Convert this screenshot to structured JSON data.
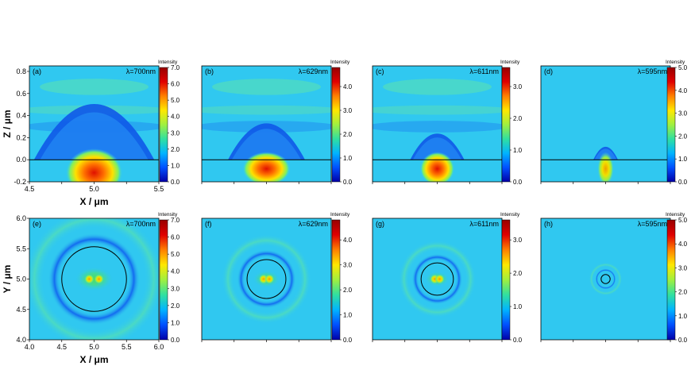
{
  "chart_data": [
    {
      "type": "heatmap",
      "label": "(a)",
      "wavelength": "λ=700nm",
      "view": "XZ",
      "xlim": [
        4.5,
        5.5
      ],
      "ylim": [
        -0.2,
        0.85
      ],
      "xticks": [
        "4.5",
        "5.0",
        "5.5"
      ],
      "yticks": [
        "-0.2",
        "0.0",
        "0.2",
        "0.4",
        "0.6",
        "0.8"
      ],
      "xlabel": "X / μm",
      "ylabel": "Z / μm",
      "colorbar": {
        "title": "Intensity",
        "range": [
          0,
          7
        ],
        "ticks": [
          "0.0",
          "1.0",
          "2.0",
          "3.0",
          "4.0",
          "5.0",
          "6.0",
          "7.0"
        ]
      }
    },
    {
      "type": "heatmap",
      "label": "(b)",
      "wavelength": "λ=629nm",
      "view": "XZ",
      "xlim": [
        4.5,
        5.5
      ],
      "ylim": [
        -0.2,
        0.85
      ],
      "xticks": [],
      "yticks": [],
      "xlabel": "",
      "ylabel": "",
      "colorbar": {
        "title": "Intensity",
        "range": [
          0,
          4.8
        ],
        "ticks": [
          "0.0",
          "1.0",
          "2.0",
          "3.0",
          "4.0"
        ]
      }
    },
    {
      "type": "heatmap",
      "label": "(c)",
      "wavelength": "λ=611nm",
      "view": "XZ",
      "xlim": [
        4.5,
        5.5
      ],
      "ylim": [
        -0.2,
        0.85
      ],
      "xticks": [],
      "yticks": [],
      "xlabel": "",
      "ylabel": "",
      "colorbar": {
        "title": "Intensity",
        "range": [
          0,
          3.6
        ],
        "ticks": [
          "0.0",
          "1.0",
          "2.0",
          "3.0"
        ]
      }
    },
    {
      "type": "heatmap",
      "label": "(d)",
      "wavelength": "λ=595nm",
      "view": "XZ",
      "xlim": [
        4.5,
        5.5
      ],
      "ylim": [
        -0.2,
        0.85
      ],
      "xticks": [],
      "yticks": [],
      "xlabel": "",
      "ylabel": "",
      "colorbar": {
        "title": "Intensity",
        "range": [
          0,
          5
        ],
        "ticks": [
          "0.0",
          "1.0",
          "2.0",
          "3.0",
          "4.0",
          "5.0"
        ]
      }
    },
    {
      "type": "heatmap",
      "label": "(e)",
      "wavelength": "λ=700nm",
      "view": "XY",
      "xlim": [
        4.0,
        6.0
      ],
      "ylim": [
        4.0,
        6.0
      ],
      "xticks": [
        "4.0",
        "4.5",
        "5.0",
        "5.5",
        "6.0"
      ],
      "yticks": [
        "4.0",
        "4.5",
        "5.0",
        "5.5",
        "6.0"
      ],
      "xlabel": "X / μm",
      "ylabel": "Y / μm",
      "colorbar": {
        "title": "Intensity",
        "range": [
          0,
          7
        ],
        "ticks": [
          "0.0",
          "1.0",
          "2.0",
          "3.0",
          "4.0",
          "5.0",
          "6.0",
          "7.0"
        ]
      }
    },
    {
      "type": "heatmap",
      "label": "(f)",
      "wavelength": "λ=629nm",
      "view": "XY",
      "xlim": [
        4.0,
        6.0
      ],
      "ylim": [
        4.0,
        6.0
      ],
      "xticks": [],
      "yticks": [],
      "xlabel": "",
      "ylabel": "",
      "colorbar": {
        "title": "Intensity",
        "range": [
          0,
          4.8
        ],
        "ticks": [
          "0.0",
          "1.0",
          "2.0",
          "3.0",
          "4.0"
        ]
      }
    },
    {
      "type": "heatmap",
      "label": "(g)",
      "wavelength": "λ=611nm",
      "view": "XY",
      "xlim": [
        4.0,
        6.0
      ],
      "ylim": [
        4.0,
        6.0
      ],
      "xticks": [],
      "yticks": [],
      "xlabel": "",
      "ylabel": "",
      "colorbar": {
        "title": "Intensity",
        "range": [
          0,
          3.6
        ],
        "ticks": [
          "0.0",
          "1.0",
          "2.0",
          "3.0"
        ]
      }
    },
    {
      "type": "heatmap",
      "label": "(h)",
      "wavelength": "λ=595nm",
      "view": "XY",
      "xlim": [
        4.0,
        6.0
      ],
      "ylim": [
        4.0,
        6.0
      ],
      "xticks": [],
      "yticks": [],
      "xlabel": "",
      "ylabel": "",
      "colorbar": {
        "title": "Intensity",
        "range": [
          0,
          5
        ],
        "ticks": [
          "0.0",
          "1.0",
          "2.0",
          "3.0",
          "4.0",
          "5.0"
        ]
      }
    }
  ],
  "colors": {
    "background": "#30c8f0",
    "colormap": [
      "#0000a8",
      "#0050ff",
      "#00b4ff",
      "#30e0a0",
      "#a0f040",
      "#ffe800",
      "#ff8000",
      "#e00000",
      "#980000"
    ],
    "interface_line": "#000000",
    "rod_outline": "#000000"
  }
}
